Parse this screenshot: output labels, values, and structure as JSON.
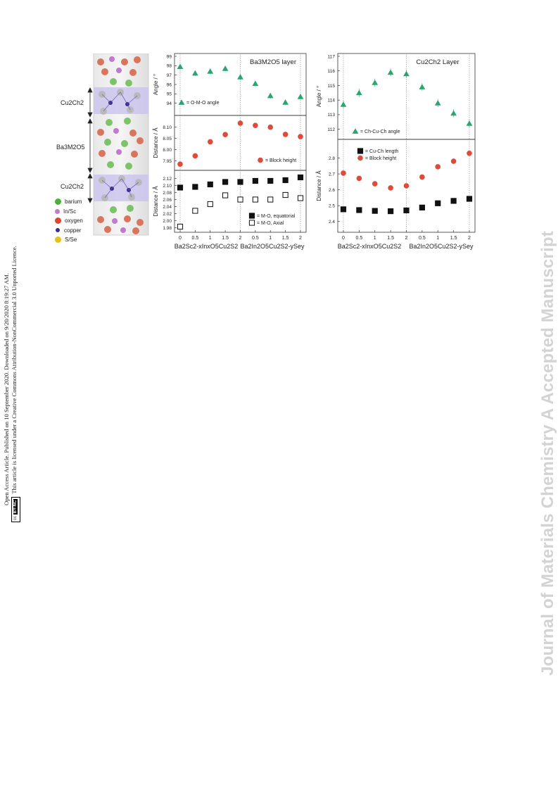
{
  "side_note": {
    "line1": "Open Access Article. Published on 10 September 2020. Downloaded on 9/20/2020 8:19:27 AM.",
    "line2": "This article is licensed under a Creative Commons Attribution-NonCommercial 3.0 Unported Licence.",
    "badge_cc": "cc",
    "badge_by": "BY-NC"
  },
  "watermark": "Journal of Materials Chemistry A Accepted Manuscript",
  "structure": {
    "labels": [
      "Cu2Ch2",
      "Ba3M2O5",
      "Cu2Ch2"
    ],
    "legend": [
      {
        "label": "barium",
        "color": "#4caf3c"
      },
      {
        "label": "In/Sc",
        "color": "#c07ad0"
      },
      {
        "label": "oxygen",
        "color": "#d9482c"
      },
      {
        "label": "copper",
        "color": "#3a2b8c"
      },
      {
        "label": "S/Se",
        "color": "#e3c21a"
      }
    ]
  },
  "colors": {
    "triangle": "#2aa56e",
    "circle": "#e04a3a",
    "square": "#111111"
  },
  "chart_data": [
    {
      "type": "scatter",
      "panel": "left-top",
      "title": "Ba3M2O5 layer",
      "ylabel": "Angle / °",
      "ylim": [
        93,
        99
      ],
      "yticks": [
        "94",
        "95",
        "96",
        "97",
        "98",
        "99"
      ],
      "legend": "= O-M-O angle",
      "x": [
        0,
        0.5,
        1,
        1.5,
        2,
        2.5,
        3,
        3.5,
        4
      ],
      "y": [
        97.9,
        97.2,
        97.4,
        97.7,
        96.8,
        96.1,
        94.8,
        94.1,
        94.7
      ]
    },
    {
      "type": "scatter",
      "panel": "left-middle",
      "ylabel": "Distance / Å",
      "ylim": [
        7.92,
        8.14
      ],
      "yticks": [
        "7.95",
        "8.00",
        "8.05",
        "8.10"
      ],
      "legend": "= Block height",
      "x": [
        0,
        0.5,
        1,
        1.5,
        2,
        2.5,
        3,
        3.5,
        4
      ],
      "y": [
        7.935,
        7.972,
        8.035,
        8.067,
        8.118,
        8.108,
        8.1,
        8.068,
        8.058
      ]
    },
    {
      "type": "scatter",
      "panel": "left-bottom",
      "ylabel": "Distance / Å",
      "ylim": [
        1.975,
        2.135
      ],
      "yticks": [
        "1.98",
        "2.00",
        "2.02",
        "2.04",
        "2.06",
        "2.08",
        "2.10",
        "2.12"
      ],
      "series": [
        {
          "name": "= M-O, equatorial",
          "values": [
            2.094,
            2.096,
            2.103,
            2.11,
            2.11,
            2.113,
            2.113,
            2.115,
            2.123
          ]
        },
        {
          "name": "= M-O, Axial",
          "values": [
            1.983,
            2.028,
            2.047,
            2.072,
            2.06,
            2.06,
            2.06,
            2.073,
            2.064
          ]
        }
      ],
      "x": [
        0,
        0.5,
        1,
        1.5,
        2,
        2.5,
        3,
        3.5,
        4
      ],
      "xtick_labels": [
        "0",
        "0.5",
        "1",
        "1.5",
        "2",
        "0.5",
        "1",
        "1.5",
        "2"
      ],
      "xlabel_left": "Ba2Sc2-xInxO5Cu2S2",
      "xlabel_right": "Ba2In2O5Cu2S2-ySey"
    },
    {
      "type": "scatter",
      "panel": "right-top",
      "title": "Cu2Ch2 Layer",
      "ylabel": "Angle / °",
      "ylim": [
        111.5,
        117
      ],
      "yticks": [
        "112",
        "113",
        "114",
        "115",
        "116",
        "117"
      ],
      "legend": "= Ch-Cu-Ch angle",
      "x": [
        0,
        0.5,
        1,
        1.5,
        2,
        2.5,
        3,
        3.5,
        4
      ],
      "y": [
        113.7,
        114.5,
        115.2,
        115.9,
        115.8,
        114.9,
        113.8,
        113.1,
        112.4
      ]
    },
    {
      "type": "scatter",
      "panel": "right-bottom",
      "ylabel": "Distance / Å",
      "ylim": [
        2.35,
        2.9
      ],
      "yticks": [
        "2.4",
        "2.5",
        "2.6",
        "2.7",
        "2.8"
      ],
      "series": [
        {
          "name": "= Cu-Ch length",
          "values": [
            2.477,
            2.472,
            2.467,
            2.465,
            2.47,
            2.488,
            2.515,
            2.53,
            2.543
          ]
        },
        {
          "name": "= Block height",
          "values": [
            2.705,
            2.672,
            2.638,
            2.612,
            2.625,
            2.68,
            2.745,
            2.78,
            2.83
          ]
        }
      ],
      "x": [
        0,
        0.5,
        1,
        1.5,
        2,
        2.5,
        3,
        3.5,
        4
      ],
      "xtick_labels": [
        "0",
        "0.5",
        "1",
        "1.5",
        "2",
        "0.5",
        "1",
        "1.5",
        "2"
      ],
      "xlabel_left": "Ba2Sc2-xInxO5Cu2S2",
      "xlabel_right": "Ba2In2O5Cu2S2-ySey"
    }
  ]
}
